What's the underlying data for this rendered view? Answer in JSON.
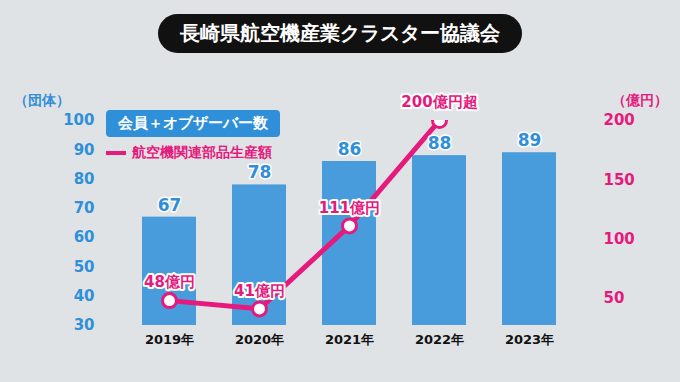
{
  "chart_data": {
    "type": "bar",
    "title": "長崎県航空機産業クラスター協議会",
    "categories": [
      "2019年",
      "2020年",
      "2021年",
      "2022年",
      "2023年"
    ],
    "ylabel": "（団体）",
    "y2label": "（億円）",
    "ylim": [
      30,
      100
    ],
    "yticks": [
      30,
      40,
      50,
      60,
      70,
      80,
      90,
      100
    ],
    "y2lim": [
      27,
      200
    ],
    "y2ticks": [
      50,
      100,
      150,
      200
    ],
    "data_labels": true,
    "series": [
      {
        "name": "会員＋オブザーバー数",
        "type": "bar",
        "color": "#2f8fd8",
        "values": [
          67,
          78,
          86,
          88,
          89
        ]
      },
      {
        "name": "航空機関連部品生産額",
        "type": "line",
        "axis": "y2",
        "color": "#e6197d",
        "marker": "circle",
        "values": [
          48,
          41,
          111,
          200,
          null
        ],
        "value_labels": [
          "48億円",
          "41億円",
          "111億円",
          "200億円超",
          null
        ]
      }
    ]
  }
}
